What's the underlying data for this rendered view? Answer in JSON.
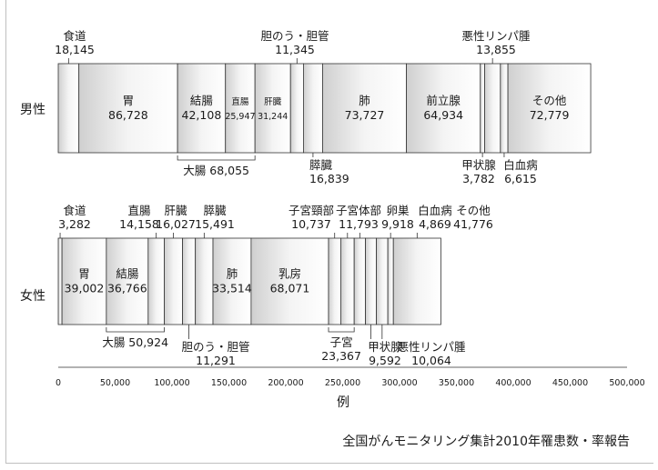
{
  "chart_data": {
    "type": "bar",
    "orientation": "horizontal-stacked",
    "xlabel": "例",
    "xlim": [
      0,
      500000
    ],
    "xticks": [
      "0",
      "50,000",
      "100,000",
      "150,000",
      "200,000",
      "250,000",
      "300,000",
      "350,000",
      "400,000",
      "450,000",
      "500,000"
    ],
    "grid": false,
    "source": "全国がんモニタリング集計2010年罹患数・率報告",
    "groups": [
      {
        "name": "男性",
        "segments": [
          {
            "name": "食道",
            "value": 18145,
            "value_label": "18,145"
          },
          {
            "name": "胃",
            "value": 86728,
            "value_label": "86,728"
          },
          {
            "name": "結腸",
            "value": 42108,
            "value_label": "42,108"
          },
          {
            "name": "直腸",
            "value": 25947,
            "value_label": "25,947"
          },
          {
            "name": "肝臓",
            "value": 31244,
            "value_label": "31,244"
          },
          {
            "name": "胆のう・胆管",
            "value": 11345,
            "value_label": "11,345"
          },
          {
            "name": "膵臓",
            "value": 16839,
            "value_label": "16,839"
          },
          {
            "name": "肺",
            "value": 73727,
            "value_label": "73,727"
          },
          {
            "name": "前立腺",
            "value": 64934,
            "value_label": "64,934"
          },
          {
            "name": "甲状腺",
            "value": 3782,
            "value_label": "3,782"
          },
          {
            "name": "悪性リンパ腫",
            "value": 13855,
            "value_label": "13,855"
          },
          {
            "name": "白血病",
            "value": 6615,
            "value_label": "6,615"
          },
          {
            "name": "その他",
            "value": 72779,
            "value_label": "72,779"
          }
        ],
        "bracket": {
          "name": "大腸",
          "value": 68055,
          "value_label": "68,055"
        }
      },
      {
        "name": "女性",
        "segments": [
          {
            "name": "食道",
            "value": 3282,
            "value_label": "3,282"
          },
          {
            "name": "胃",
            "value": 39002,
            "value_label": "39,002"
          },
          {
            "name": "結腸",
            "value": 36766,
            "value_label": "36,766"
          },
          {
            "name": "直腸",
            "value": 14158,
            "value_label": "14,158"
          },
          {
            "name": "肝臓",
            "value": 16027,
            "value_label": "16,027"
          },
          {
            "name": "胆のう・胆管",
            "value": 11291,
            "value_label": "11,291"
          },
          {
            "name": "膵臓",
            "value": 15491,
            "value_label": "15,491"
          },
          {
            "name": "肺",
            "value": 33514,
            "value_label": "33,514"
          },
          {
            "name": "乳房",
            "value": 68071,
            "value_label": "68,071"
          },
          {
            "name": "子宮頸部",
            "value": 10737,
            "value_label": "10,737"
          },
          {
            "name": "子宮体部",
            "value": 11793,
            "value_label": "11,793"
          },
          {
            "name": "卵巣",
            "value": 9918,
            "value_label": "9,918"
          },
          {
            "name": "甲状腺",
            "value": 9592,
            "value_label": "9,592"
          },
          {
            "name": "悪性リンパ腫",
            "value": 10064,
            "value_label": "10,064"
          },
          {
            "name": "白血病",
            "value": 4869,
            "value_label": "4,869"
          },
          {
            "name": "その他",
            "value": 41776,
            "value_label": "41,776"
          }
        ],
        "bracket": {
          "name": "大腸",
          "value": 50924,
          "value_label": "50,924"
        },
        "bracket_uterus": {
          "name": "子宮",
          "value": 23367,
          "value_label": "23,367"
        }
      }
    ]
  },
  "colors": {
    "segment_fill_light": "#f2f2f2",
    "segment_fill_dark": "#cfcfcf",
    "stroke": "#333333",
    "frame": "#bfbfbf"
  }
}
